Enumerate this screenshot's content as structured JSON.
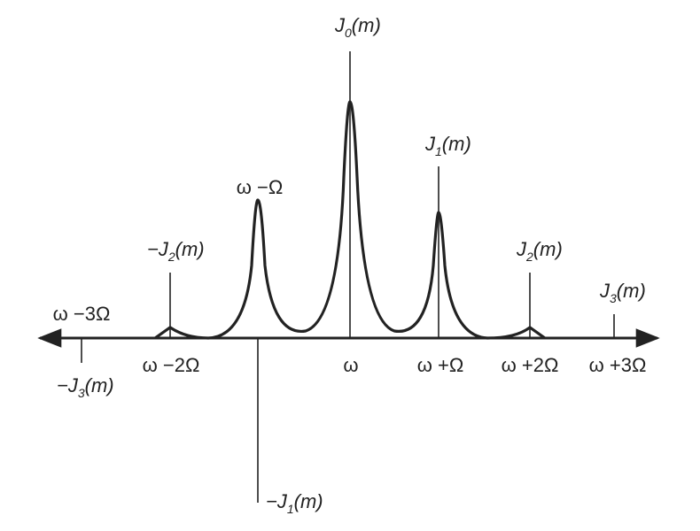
{
  "spectral_lines": [
    {
      "sign": "",
      "symbol": "J",
      "sub": "0",
      "arg": "(m)"
    },
    {
      "sign": "",
      "symbol": "J",
      "sub": "1",
      "arg": "(m)"
    },
    {
      "sign": "",
      "symbol": "J",
      "sub": "2",
      "arg": "(m)"
    },
    {
      "sign": "",
      "symbol": "J",
      "sub": "3",
      "arg": "(m)"
    },
    {
      "sign": "−",
      "symbol": "J",
      "sub": "2",
      "arg": "(m)"
    },
    {
      "sign": "−",
      "symbol": "J",
      "sub": "1",
      "arg": "(m)"
    },
    {
      "sign": "−",
      "symbol": "J",
      "sub": "3",
      "arg": "(m)"
    }
  ],
  "frequency_labels": [
    "ω",
    "ω +Ω",
    "ω +2Ω",
    "ω +3Ω",
    "ω −2Ω",
    "ω −Ω",
    "ω −3Ω"
  ]
}
